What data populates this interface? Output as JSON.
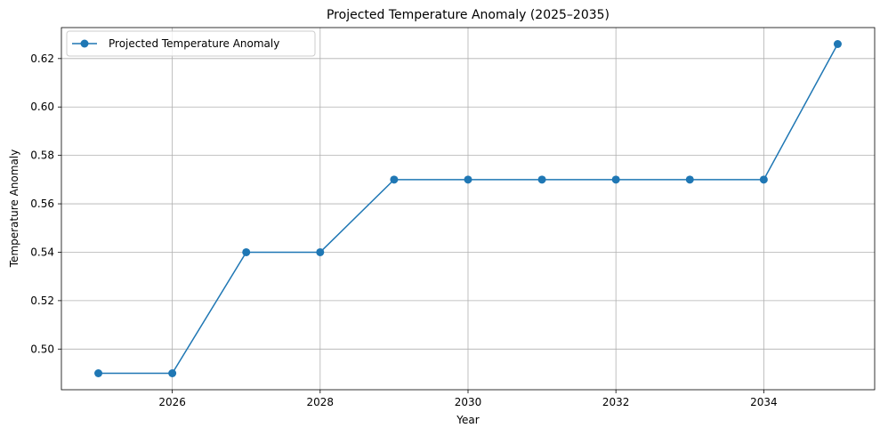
{
  "chart_data": {
    "type": "line",
    "title": "Projected Temperature Anomaly (2025–2035)",
    "xlabel": "Year",
    "ylabel": "Temperature Anomaly",
    "x": [
      2025,
      2026,
      2027,
      2028,
      2029,
      2030,
      2031,
      2032,
      2033,
      2034,
      2035
    ],
    "series": [
      {
        "name": "Projected Temperature Anomaly",
        "values": [
          0.49,
          0.49,
          0.54,
          0.54,
          0.57,
          0.57,
          0.57,
          0.57,
          0.57,
          0.57,
          0.626
        ],
        "color": "#1f77b4",
        "marker": "circle"
      }
    ],
    "xlim": [
      2024.5,
      2035.5
    ],
    "ylim": [
      0.4832,
      0.6328
    ],
    "x_ticks": [
      "2026",
      "2028",
      "2030",
      "2032",
      "2034"
    ],
    "y_ticks": [
      "0.50",
      "0.52",
      "0.54",
      "0.56",
      "0.58",
      "0.60",
      "0.62"
    ],
    "grid": true,
    "legend_position": "top-left"
  }
}
